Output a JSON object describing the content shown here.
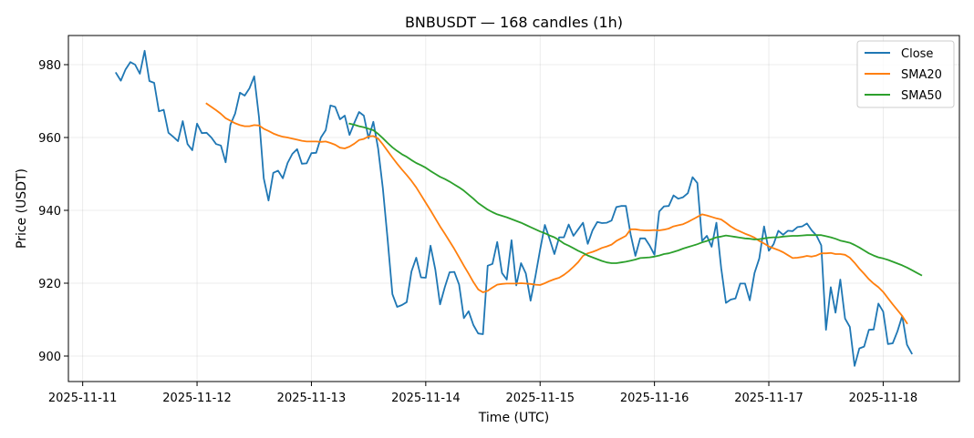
{
  "chart_data": {
    "type": "line",
    "title": "BNBUSDT — 168 candles (1h)",
    "xlabel": "Time (UTC)",
    "ylabel": "Price (USDT)",
    "x_start": "2025-11-11T07:00Z",
    "x_step_hours": 1,
    "xlim": [
      "2025-11-10T21:00Z",
      "2025-11-18T16:00Z"
    ],
    "ylim": [
      893,
      988
    ],
    "x_ticks": [
      "2025-11-11",
      "2025-11-12",
      "2025-11-13",
      "2025-11-14",
      "2025-11-15",
      "2025-11-16",
      "2025-11-17",
      "2025-11-18"
    ],
    "y_ticks": [
      900,
      920,
      940,
      960,
      980
    ],
    "grid": true,
    "legend_position": "upper-right",
    "series": [
      {
        "name": "Close",
        "color": "#1f77b4",
        "offset": 0,
        "values": [
          977.7,
          975.6,
          978.7,
          980.7,
          980.0,
          977.5,
          983.8,
          975.5,
          975.0,
          967.2,
          967.6,
          961.3,
          960.2,
          959.0,
          964.5,
          958.2,
          956.5,
          963.8,
          961.2,
          961.3,
          960.0,
          958.2,
          957.8,
          953.2,
          963.5,
          966.6,
          972.3,
          971.5,
          973.5,
          976.8,
          965.6,
          948.8,
          942.7,
          950.3,
          950.9,
          948.8,
          953.0,
          955.5,
          956.8,
          952.8,
          952.9,
          955.7,
          955.8,
          960.0,
          962.0,
          968.8,
          968.4,
          965.0,
          966.0,
          960.7,
          964.0,
          967.0,
          966.0,
          959.8,
          964.3,
          957.0,
          946.0,
          932.0,
          917.0,
          913.5,
          914.0,
          914.8,
          923.2,
          927.0,
          921.6,
          921.5,
          930.3,
          923.8,
          914.2,
          918.9,
          923.0,
          923.1,
          919.6,
          910.4,
          912.3,
          908.5,
          906.2,
          906.0,
          924.8,
          925.3,
          931.3,
          922.8,
          921.0,
          931.8,
          919.4,
          925.5,
          922.7,
          915.2,
          921.8,
          929.2,
          936.0,
          932.1,
          928.0,
          932.6,
          932.6,
          936.1,
          933.0,
          934.8,
          936.6,
          930.8,
          934.5,
          936.8,
          936.5,
          936.6,
          937.2,
          940.9,
          941.2,
          941.2,
          933.4,
          927.5,
          932.3,
          932.3,
          930.3,
          927.8,
          939.7,
          941.1,
          941.2,
          944.1,
          943.2,
          943.6,
          944.7,
          949.1,
          947.5,
          931.6,
          933.0,
          930.0,
          936.6,
          924.2,
          914.6,
          915.5,
          915.8,
          919.9,
          919.9,
          915.3,
          922.8,
          926.8,
          935.6,
          928.9,
          930.7,
          934.4,
          933.3,
          934.4,
          934.3,
          935.4,
          935.6,
          936.4,
          934.5,
          933.1,
          930.4,
          907.2,
          918.9,
          911.9,
          921.0,
          910.3,
          908.0,
          897.3,
          902.1,
          902.6,
          907.2,
          907.3,
          914.4,
          912.2,
          903.3,
          903.5,
          906.8,
          911.0,
          903.1,
          900.7
        ]
      },
      {
        "name": "SMA20",
        "color": "#ff7f0e",
        "offset": 19,
        "values": [
          969.3,
          968.4,
          967.5,
          966.5,
          965.3,
          964.6,
          963.9,
          963.4,
          963.1,
          963.1,
          963.4,
          963.3,
          962.4,
          961.8,
          961.1,
          960.6,
          960.2,
          960.0,
          959.7,
          959.4,
          959.1,
          958.9,
          958.9,
          958.9,
          958.8,
          958.9,
          958.5,
          958.0,
          957.2,
          957.0,
          957.5,
          958.3,
          959.3,
          959.6,
          960.3,
          960.4,
          959.7,
          958.1,
          956.3,
          954.5,
          952.8,
          951.2,
          949.7,
          948.1,
          946.3,
          944.2,
          942.1,
          940.0,
          937.8,
          935.6,
          933.6,
          931.5,
          929.4,
          927.1,
          924.8,
          922.6,
          920.3,
          918.3,
          917.5,
          917.9,
          918.8,
          919.6,
          919.8,
          919.9,
          919.9,
          919.9,
          920.0,
          919.9,
          919.8,
          919.6,
          919.5,
          920.0,
          920.6,
          921.1,
          921.5,
          922.3,
          923.3,
          924.5,
          925.8,
          927.5,
          928.2,
          928.6,
          929.1,
          929.7,
          930.1,
          930.6,
          931.6,
          932.3,
          933.0,
          934.8,
          934.8,
          934.6,
          934.5,
          934.5,
          934.6,
          934.5,
          934.7,
          935.0,
          935.6,
          935.9,
          936.2,
          936.8,
          937.5,
          938.2,
          938.9,
          938.6,
          938.2,
          937.8,
          937.5,
          936.6,
          935.6,
          934.8,
          934.2,
          933.6,
          933.1,
          932.5,
          931.6,
          930.9,
          930.1,
          929.6,
          929.1,
          928.5,
          927.7,
          926.9,
          927.0,
          927.2,
          927.5,
          927.3,
          927.6,
          928.2,
          928.2,
          928.3,
          928.0,
          928.0,
          927.8,
          927.0,
          925.6,
          924.0,
          922.6,
          921.1,
          919.9,
          918.9,
          917.6,
          915.9,
          914.2,
          912.6,
          911.0,
          909.0
        ]
      },
      {
        "name": "SMA50",
        "color": "#2ca02c",
        "offset": 49,
        "values": [
          963.8,
          963.5,
          963.1,
          962.8,
          962.4,
          962.0,
          961.0,
          959.8,
          958.5,
          957.3,
          956.3,
          955.4,
          954.7,
          953.8,
          953.0,
          952.4,
          951.7,
          950.8,
          950.0,
          949.2,
          948.6,
          947.9,
          947.1,
          946.3,
          945.4,
          944.3,
          943.2,
          942.0,
          941.1,
          940.2,
          939.5,
          938.9,
          938.5,
          938.1,
          937.6,
          937.1,
          936.6,
          936.0,
          935.4,
          934.8,
          934.2,
          933.7,
          933.1,
          932.6,
          931.8,
          930.9,
          930.3,
          929.6,
          928.9,
          928.3,
          927.6,
          927.1,
          926.6,
          926.1,
          925.7,
          925.5,
          925.5,
          925.7,
          925.9,
          926.2,
          926.5,
          926.9,
          927.0,
          927.1,
          927.3,
          927.6,
          928.0,
          928.2,
          928.6,
          929.0,
          929.5,
          929.9,
          930.3,
          930.7,
          931.2,
          931.6,
          932.1,
          932.6,
          932.8,
          933.1,
          932.9,
          932.7,
          932.5,
          932.3,
          932.2,
          932.0,
          932.1,
          932.3,
          932.5,
          932.6,
          932.6,
          932.8,
          932.9,
          933.0,
          933.0,
          933.1,
          933.2,
          933.2,
          933.2,
          933.2,
          932.9,
          932.6,
          932.2,
          931.7,
          931.4,
          931.1,
          930.5,
          929.8,
          929.0,
          928.2,
          927.6,
          927.1,
          926.8,
          926.4,
          925.9,
          925.4,
          924.9,
          924.3,
          923.6,
          922.9,
          922.2
        ]
      }
    ]
  }
}
